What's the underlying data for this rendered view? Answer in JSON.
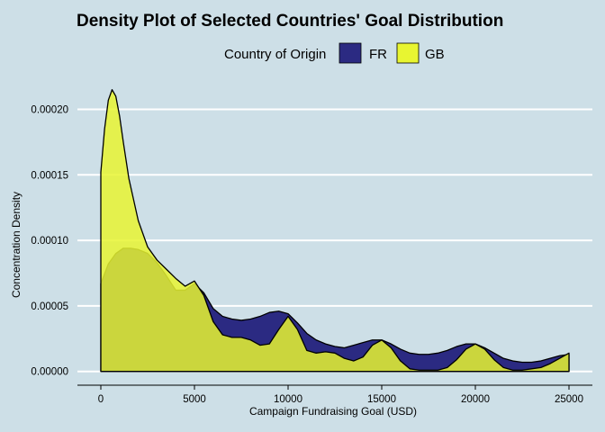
{
  "chart_data": {
    "type": "area",
    "title": "Density Plot of Selected Countries' Goal Distribution",
    "xlabel": "Campaign Fundraising Goal (USD)",
    "ylabel": "Concentration Density",
    "xlim": [
      0,
      25000
    ],
    "ylim": [
      0,
      0.00022
    ],
    "x_ticks": [
      0,
      5000,
      10000,
      15000,
      20000,
      25000
    ],
    "x_tick_labels": [
      "0",
      "5000",
      "10000",
      "15000",
      "20000",
      "25000"
    ],
    "y_ticks": [
      0,
      5e-05,
      0.0001,
      0.00015,
      0.0002
    ],
    "y_tick_labels": [
      "0.00000",
      "0.00005",
      "0.00010",
      "0.00015",
      "0.00020"
    ],
    "grid": "horizontal major lines",
    "legend": {
      "title": "Country of Origin",
      "placement": "top",
      "entries": [
        {
          "label": "FR",
          "color": "#2b2a82"
        },
        {
          "label": "GB",
          "color": "#e8f531"
        }
      ]
    },
    "series": [
      {
        "name": "FR",
        "color": "#2b2a82",
        "x": [
          0,
          400,
          800,
          1200,
          1600,
          2000,
          2500,
          3000,
          3500,
          4000,
          4500,
          5000,
          5500,
          6000,
          6500,
          7000,
          7500,
          8000,
          8500,
          9000,
          9500,
          10000,
          10500,
          11000,
          11500,
          12000,
          12500,
          13000,
          13500,
          14000,
          14500,
          15000,
          15500,
          16000,
          16500,
          17000,
          17500,
          18000,
          18500,
          19000,
          19500,
          20000,
          20500,
          21000,
          21500,
          22000,
          22500,
          23000,
          23500,
          24000,
          24500,
          25000
        ],
        "y": [
          6.7e-05,
          8.2e-05,
          9e-05,
          9.4e-05,
          9.4e-05,
          9.3e-05,
          9e-05,
          8.3e-05,
          7.3e-05,
          6.2e-05,
          6.2e-05,
          6.7e-05,
          6e-05,
          4.8e-05,
          4.2e-05,
          4e-05,
          3.9e-05,
          4e-05,
          4.2e-05,
          4.5e-05,
          4.6e-05,
          4.4e-05,
          3.7e-05,
          2.9e-05,
          2.4e-05,
          2.1e-05,
          1.9e-05,
          1.8e-05,
          2e-05,
          2.2e-05,
          2.4e-05,
          2.4e-05,
          2.1e-05,
          1.7e-05,
          1.4e-05,
          1.3e-05,
          1.3e-05,
          1.4e-05,
          1.6e-05,
          1.9e-05,
          2.1e-05,
          2.1e-05,
          1.8e-05,
          1.4e-05,
          1e-05,
          8e-06,
          7e-06,
          7e-06,
          8e-06,
          1e-05,
          1.2e-05,
          1.3e-05
        ]
      },
      {
        "name": "GB",
        "color": "#e8f531",
        "x": [
          0,
          200,
          400,
          600,
          800,
          1000,
          1200,
          1500,
          2000,
          2500,
          3000,
          3500,
          4000,
          4500,
          5000,
          5500,
          6000,
          6500,
          7000,
          7500,
          8000,
          8500,
          9000,
          9500,
          10000,
          10500,
          11000,
          11500,
          12000,
          12500,
          13000,
          13500,
          14000,
          14500,
          15000,
          15500,
          16000,
          16500,
          17000,
          17500,
          18000,
          18500,
          19000,
          19500,
          20000,
          20500,
          21000,
          21500,
          22000,
          22500,
          23000,
          23500,
          24000,
          24500,
          25000
        ],
        "y": [
          0.000152,
          0.000185,
          0.000207,
          0.000215,
          0.00021,
          0.000195,
          0.000175,
          0.000147,
          0.000115,
          9.5e-05,
          8.5e-05,
          7.8e-05,
          7.1e-05,
          6.5e-05,
          6.9e-05,
          5.8e-05,
          3.8e-05,
          2.8e-05,
          2.6e-05,
          2.6e-05,
          2.4e-05,
          2e-05,
          2.1e-05,
          3.2e-05,
          4.2e-05,
          3.2e-05,
          1.6e-05,
          1.4e-05,
          1.5e-05,
          1.4e-05,
          1e-05,
          8e-06,
          1.1e-05,
          2e-05,
          2.4e-05,
          1.8e-05,
          8e-06,
          2e-06,
          1e-06,
          1e-06,
          1e-06,
          3e-06,
          9e-06,
          1.7e-05,
          2.1e-05,
          1.7e-05,
          9e-06,
          3e-06,
          1e-06,
          1e-06,
          2e-06,
          3e-06,
          6e-06,
          1e-05,
          1.4e-05
        ]
      }
    ]
  }
}
